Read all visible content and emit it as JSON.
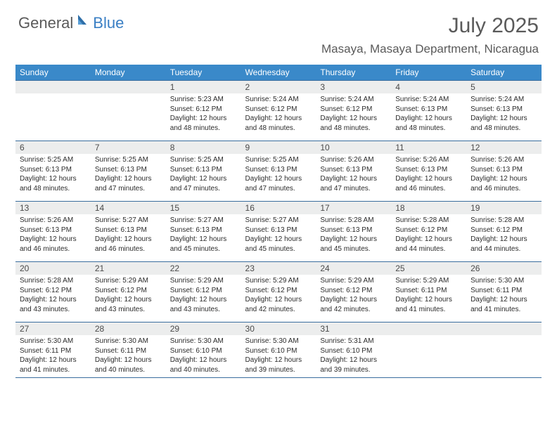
{
  "logo": {
    "text1": "General",
    "text2": "Blue"
  },
  "title": "July 2025",
  "location": "Masaya, Masaya Department, Nicaragua",
  "colors": {
    "header_bg": "#3a89c9",
    "row_border": "#3a6e9e",
    "daynum_bg": "#eceded",
    "text": "#2b2b2b",
    "title_text": "#5a5a5a",
    "logo_gray": "#5a5a5a",
    "logo_blue": "#3a7fc4"
  },
  "daysOfWeek": [
    "Sunday",
    "Monday",
    "Tuesday",
    "Wednesday",
    "Thursday",
    "Friday",
    "Saturday"
  ],
  "weeks": [
    [
      {
        "empty": true
      },
      {
        "empty": true
      },
      {
        "n": "1",
        "sunrise": "5:23 AM",
        "sunset": "6:12 PM",
        "dlh": "12",
        "dlm": "48"
      },
      {
        "n": "2",
        "sunrise": "5:24 AM",
        "sunset": "6:12 PM",
        "dlh": "12",
        "dlm": "48"
      },
      {
        "n": "3",
        "sunrise": "5:24 AM",
        "sunset": "6:12 PM",
        "dlh": "12",
        "dlm": "48"
      },
      {
        "n": "4",
        "sunrise": "5:24 AM",
        "sunset": "6:13 PM",
        "dlh": "12",
        "dlm": "48"
      },
      {
        "n": "5",
        "sunrise": "5:24 AM",
        "sunset": "6:13 PM",
        "dlh": "12",
        "dlm": "48"
      }
    ],
    [
      {
        "n": "6",
        "sunrise": "5:25 AM",
        "sunset": "6:13 PM",
        "dlh": "12",
        "dlm": "48"
      },
      {
        "n": "7",
        "sunrise": "5:25 AM",
        "sunset": "6:13 PM",
        "dlh": "12",
        "dlm": "47"
      },
      {
        "n": "8",
        "sunrise": "5:25 AM",
        "sunset": "6:13 PM",
        "dlh": "12",
        "dlm": "47"
      },
      {
        "n": "9",
        "sunrise": "5:25 AM",
        "sunset": "6:13 PM",
        "dlh": "12",
        "dlm": "47"
      },
      {
        "n": "10",
        "sunrise": "5:26 AM",
        "sunset": "6:13 PM",
        "dlh": "12",
        "dlm": "47"
      },
      {
        "n": "11",
        "sunrise": "5:26 AM",
        "sunset": "6:13 PM",
        "dlh": "12",
        "dlm": "46"
      },
      {
        "n": "12",
        "sunrise": "5:26 AM",
        "sunset": "6:13 PM",
        "dlh": "12",
        "dlm": "46"
      }
    ],
    [
      {
        "n": "13",
        "sunrise": "5:26 AM",
        "sunset": "6:13 PM",
        "dlh": "12",
        "dlm": "46"
      },
      {
        "n": "14",
        "sunrise": "5:27 AM",
        "sunset": "6:13 PM",
        "dlh": "12",
        "dlm": "46"
      },
      {
        "n": "15",
        "sunrise": "5:27 AM",
        "sunset": "6:13 PM",
        "dlh": "12",
        "dlm": "45"
      },
      {
        "n": "16",
        "sunrise": "5:27 AM",
        "sunset": "6:13 PM",
        "dlh": "12",
        "dlm": "45"
      },
      {
        "n": "17",
        "sunrise": "5:28 AM",
        "sunset": "6:13 PM",
        "dlh": "12",
        "dlm": "45"
      },
      {
        "n": "18",
        "sunrise": "5:28 AM",
        "sunset": "6:12 PM",
        "dlh": "12",
        "dlm": "44"
      },
      {
        "n": "19",
        "sunrise": "5:28 AM",
        "sunset": "6:12 PM",
        "dlh": "12",
        "dlm": "44"
      }
    ],
    [
      {
        "n": "20",
        "sunrise": "5:28 AM",
        "sunset": "6:12 PM",
        "dlh": "12",
        "dlm": "43"
      },
      {
        "n": "21",
        "sunrise": "5:29 AM",
        "sunset": "6:12 PM",
        "dlh": "12",
        "dlm": "43"
      },
      {
        "n": "22",
        "sunrise": "5:29 AM",
        "sunset": "6:12 PM",
        "dlh": "12",
        "dlm": "43"
      },
      {
        "n": "23",
        "sunrise": "5:29 AM",
        "sunset": "6:12 PM",
        "dlh": "12",
        "dlm": "42"
      },
      {
        "n": "24",
        "sunrise": "5:29 AM",
        "sunset": "6:12 PM",
        "dlh": "12",
        "dlm": "42"
      },
      {
        "n": "25",
        "sunrise": "5:29 AM",
        "sunset": "6:11 PM",
        "dlh": "12",
        "dlm": "41"
      },
      {
        "n": "26",
        "sunrise": "5:30 AM",
        "sunset": "6:11 PM",
        "dlh": "12",
        "dlm": "41"
      }
    ],
    [
      {
        "n": "27",
        "sunrise": "5:30 AM",
        "sunset": "6:11 PM",
        "dlh": "12",
        "dlm": "41"
      },
      {
        "n": "28",
        "sunrise": "5:30 AM",
        "sunset": "6:11 PM",
        "dlh": "12",
        "dlm": "40"
      },
      {
        "n": "29",
        "sunrise": "5:30 AM",
        "sunset": "6:10 PM",
        "dlh": "12",
        "dlm": "40"
      },
      {
        "n": "30",
        "sunrise": "5:30 AM",
        "sunset": "6:10 PM",
        "dlh": "12",
        "dlm": "39"
      },
      {
        "n": "31",
        "sunrise": "5:31 AM",
        "sunset": "6:10 PM",
        "dlh": "12",
        "dlm": "39"
      },
      {
        "empty": true
      },
      {
        "empty": true
      }
    ]
  ],
  "labels": {
    "sunrise": "Sunrise:",
    "sunset": "Sunset:",
    "daylight": "Daylight:",
    "hours": "hours",
    "and": "and",
    "minutes": "minutes."
  }
}
